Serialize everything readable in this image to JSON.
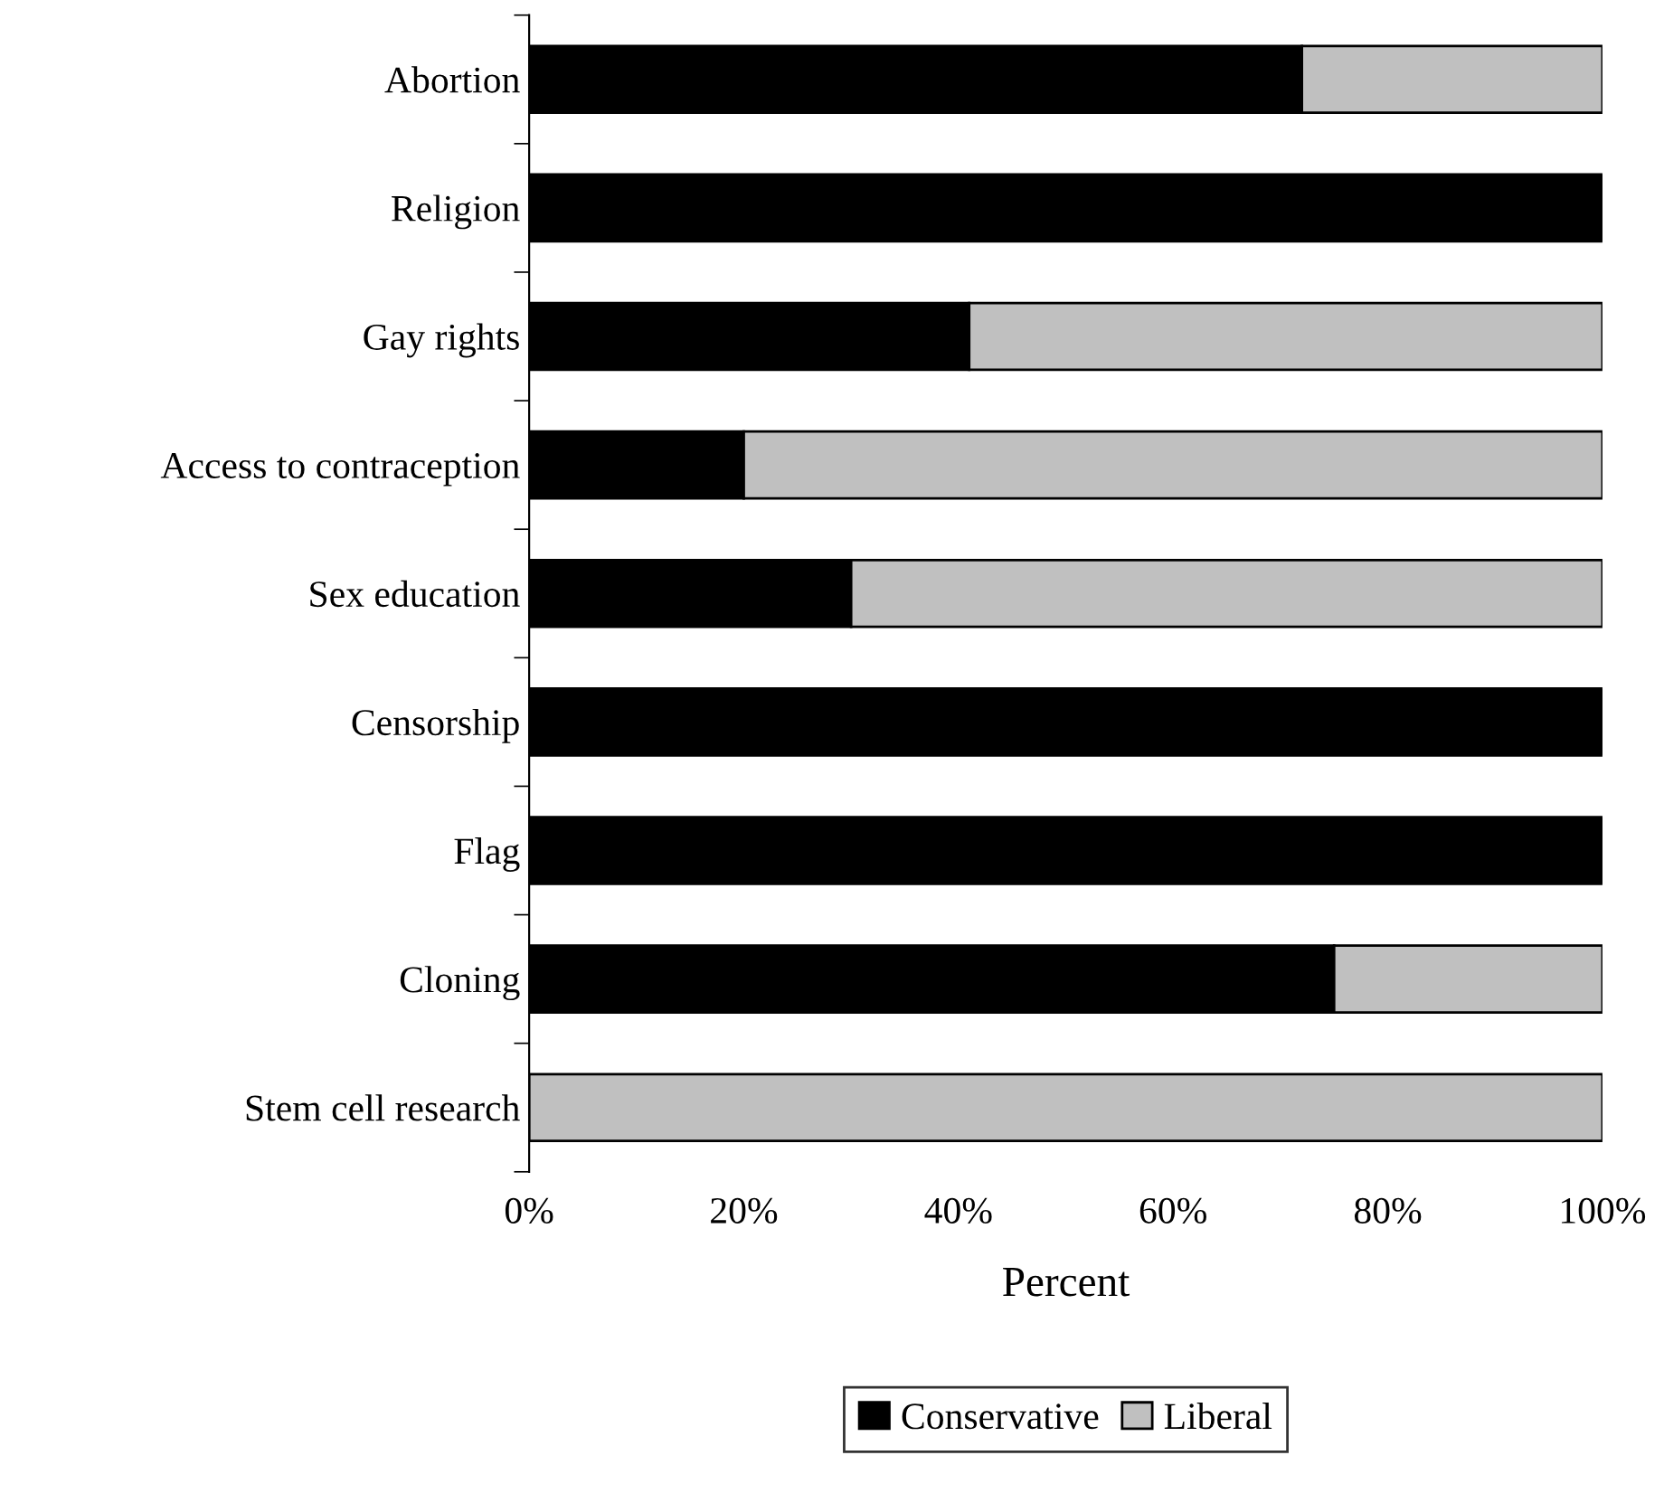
{
  "chart_data": {
    "type": "bar",
    "orientation": "horizontal",
    "stacked": true,
    "xlabel": "Percent",
    "categories": [
      "Abortion",
      "Religion",
      "Gay rights",
      "Access to contraception",
      "Sex education",
      "Censorship",
      "Flag",
      "Cloning",
      "Stem cell research"
    ],
    "series": [
      {
        "name": "Conservative",
        "color": "#000000",
        "values": [
          72,
          100,
          41,
          20,
          30,
          100,
          100,
          75,
          0
        ]
      },
      {
        "name": "Liberal",
        "color": "#c0c0c0",
        "values": [
          28,
          0,
          59,
          80,
          70,
          0,
          0,
          25,
          100
        ]
      }
    ],
    "xlim": [
      0,
      100
    ],
    "xticks": [
      {
        "value": 0,
        "label": "0%"
      },
      {
        "value": 20,
        "label": "20%"
      },
      {
        "value": 40,
        "label": "40%"
      },
      {
        "value": 60,
        "label": "60%"
      },
      {
        "value": 80,
        "label": "80%"
      },
      {
        "value": 100,
        "label": "100%"
      }
    ],
    "grid": false,
    "legend": "bottom"
  }
}
